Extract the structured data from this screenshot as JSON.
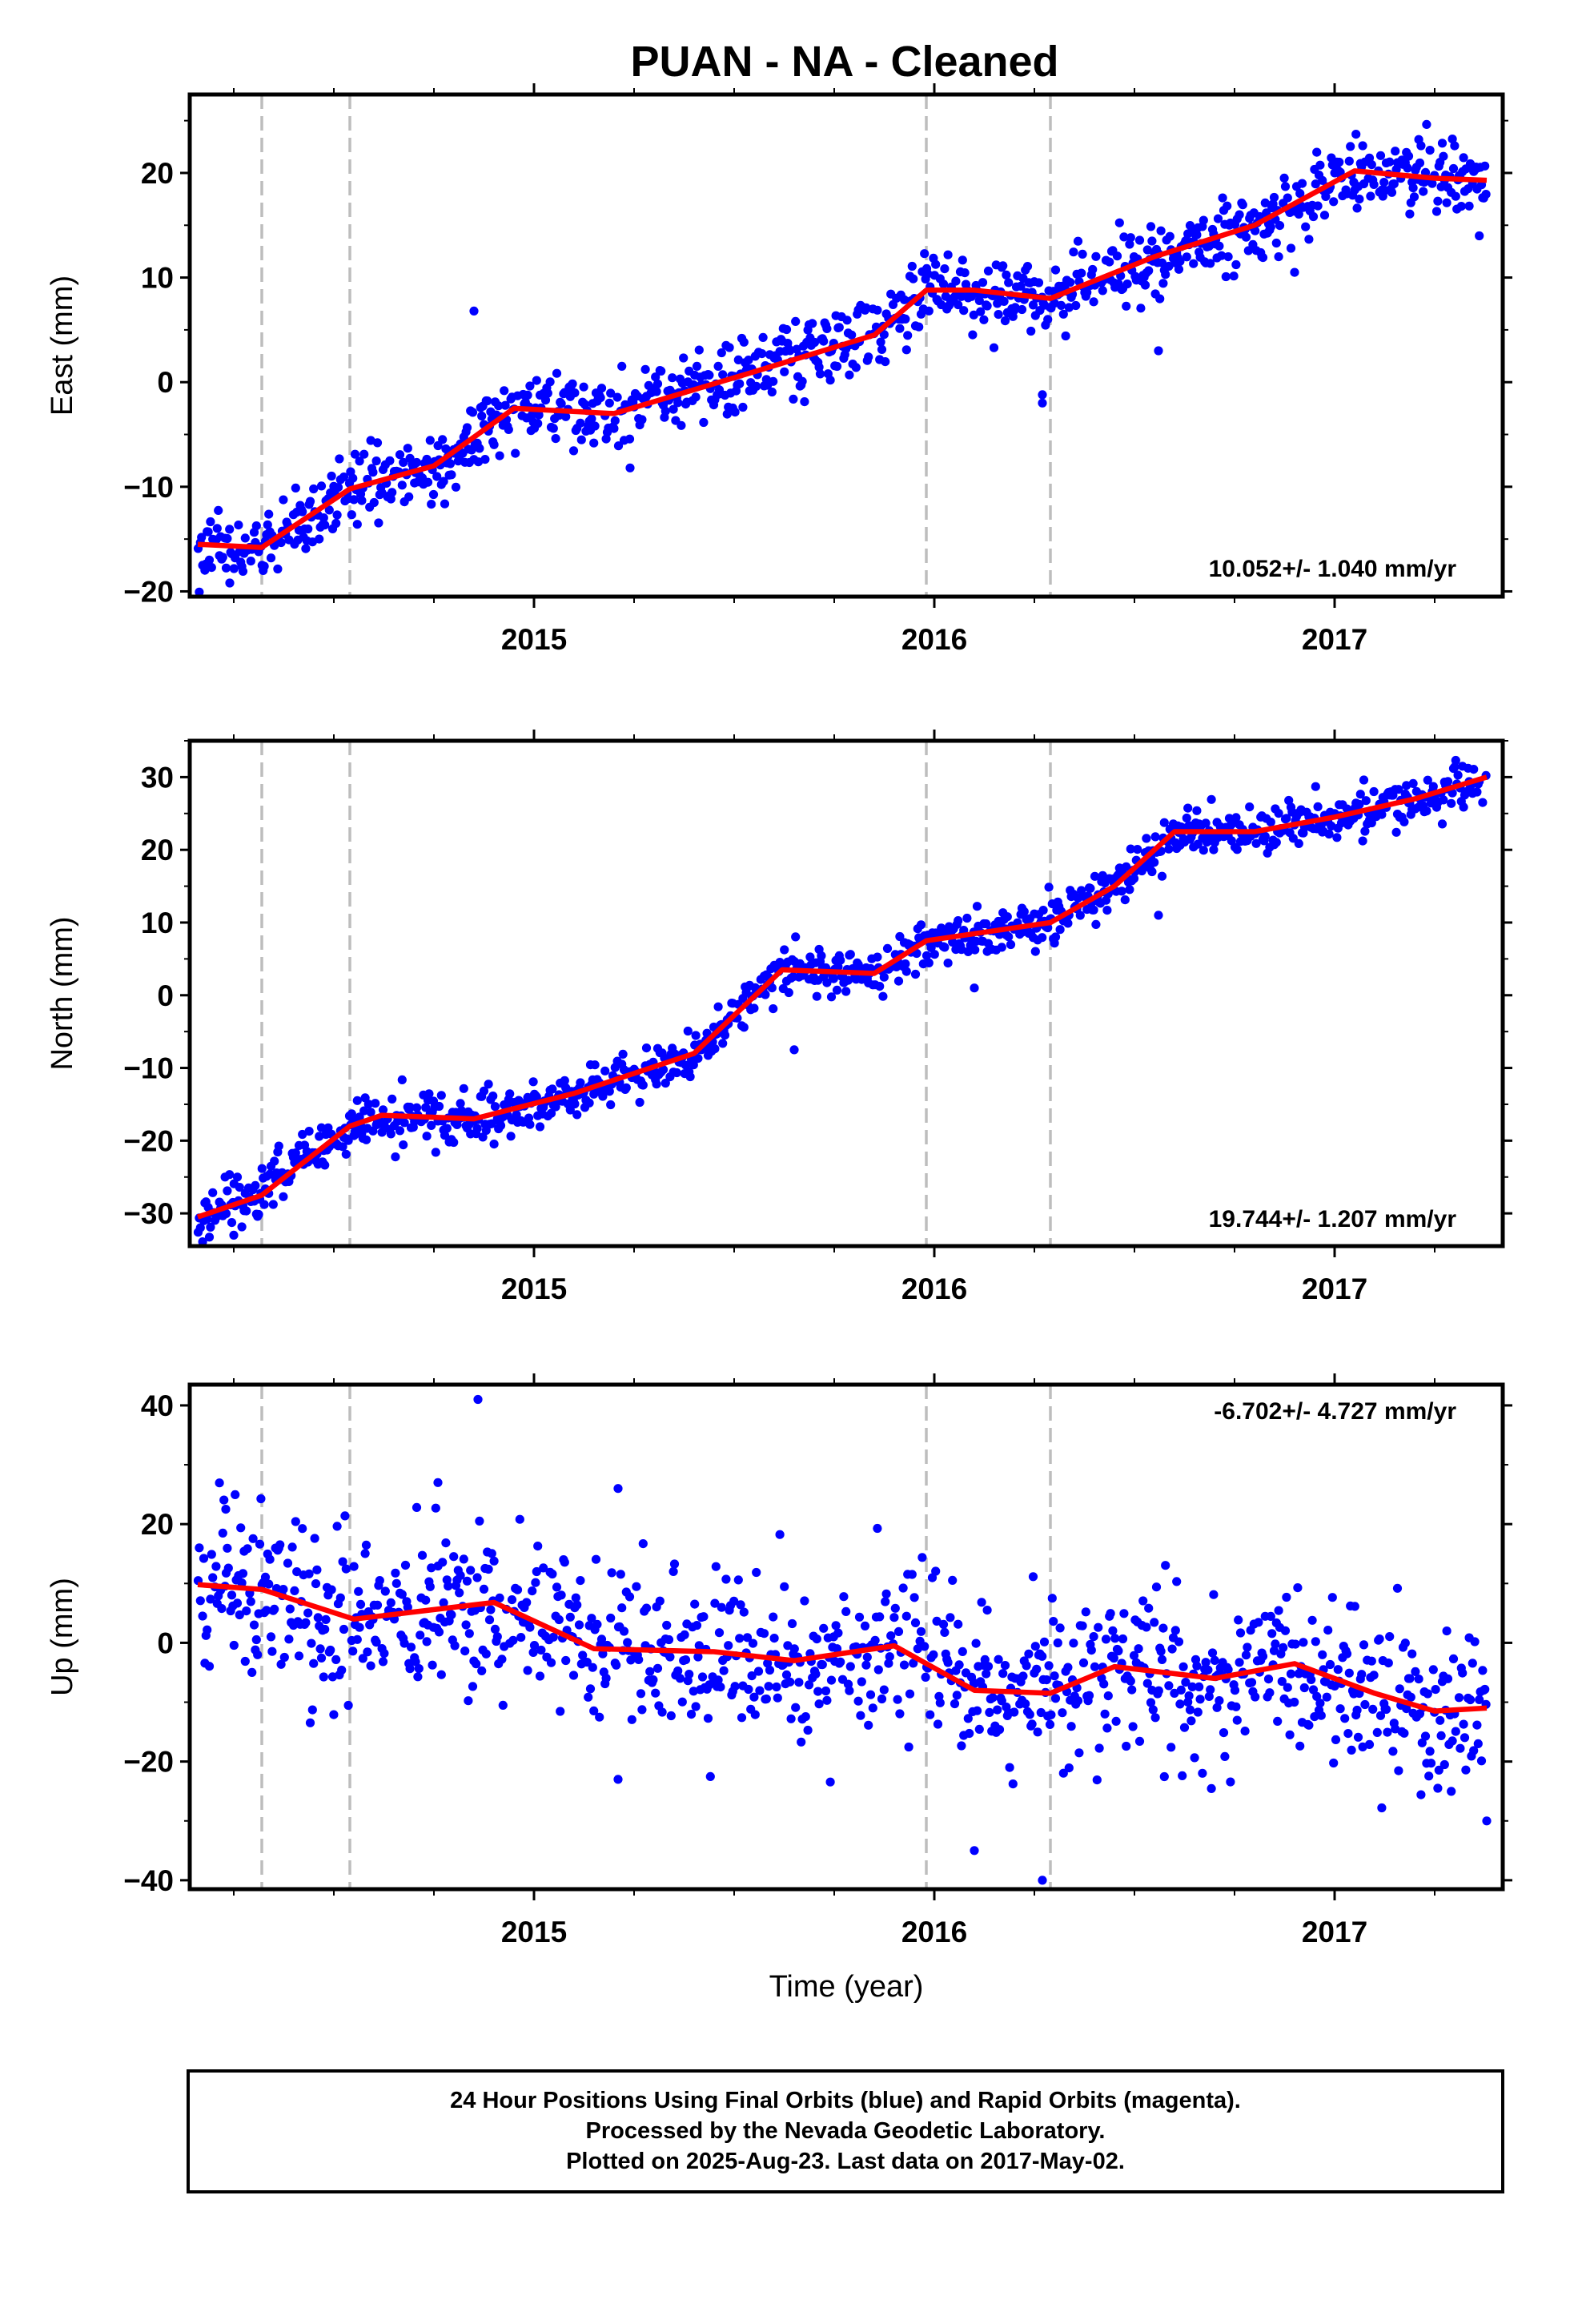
{
  "title": "PUAN  - NA - Cleaned",
  "footer": {
    "line1": "24 Hour Positions Using Final Orbits (blue) and Rapid Orbits (magenta).",
    "line2": "Processed by the Nevada Geodetic Laboratory.",
    "line3": "Plotted on 2025-Aug-23. Last data on 2017-May-02."
  },
  "colors": {
    "points": "#0000ff",
    "model": "#ff0000",
    "breaks": "#bdbdbd",
    "frame": "#000000"
  },
  "chart_data": [
    {
      "type": "scatter",
      "ylabel": "East (mm)",
      "xlim": [
        2014.14,
        2017.42
      ],
      "ylim": [
        -20.5,
        27.5
      ],
      "yticks": [
        -20,
        -10,
        0,
        10,
        20
      ],
      "xticks": [
        2015,
        2016,
        2017
      ],
      "rate_text": "10.052+/- 1.040 mm/yr",
      "breaks": [
        2014.32,
        2014.54,
        2015.98,
        2016.29
      ],
      "trend": {
        "x": [
          2014.16,
          2014.32,
          2014.54,
          2014.75,
          2014.95,
          2015.2,
          2015.55,
          2015.85,
          2015.98,
          2016.1,
          2016.29,
          2016.55,
          2016.8,
          2017.05,
          2017.25,
          2017.38
        ],
        "y": [
          -15.5,
          -15.8,
          -10.2,
          -8.0,
          -2.5,
          -3.0,
          1.0,
          4.5,
          8.8,
          8.8,
          8.0,
          12.0,
          15.0,
          20.2,
          19.5,
          19.3
        ]
      },
      "noise": 1.8,
      "outliers": [
        {
          "x": 2014.85,
          "y": 6.8
        },
        {
          "x": 2016.27,
          "y": -1.2
        },
        {
          "x": 2016.27,
          "y": -2.0
        },
        {
          "x": 2016.9,
          "y": 10.5
        },
        {
          "x": 2016.56,
          "y": 3.0
        },
        {
          "x": 2015.24,
          "y": -8.2
        },
        {
          "x": 2014.24,
          "y": -19.2
        }
      ]
    },
    {
      "type": "scatter",
      "ylabel": "North (mm)",
      "xlim": [
        2014.14,
        2017.42
      ],
      "ylim": [
        -34.5,
        35.0
      ],
      "yticks": [
        -30,
        -20,
        -10,
        0,
        10,
        20,
        30
      ],
      "xticks": [
        2015,
        2016,
        2017
      ],
      "rate_text": "19.744+/- 1.207 mm/yr",
      "breaks": [
        2014.32,
        2014.54,
        2015.98,
        2016.29
      ],
      "trend": {
        "x": [
          2014.16,
          2014.32,
          2014.54,
          2014.62,
          2014.85,
          2015.1,
          2015.4,
          2015.62,
          2015.85,
          2015.98,
          2016.29,
          2016.45,
          2016.6,
          2016.8,
          2017.0,
          2017.2,
          2017.38
        ],
        "y": [
          -30.5,
          -27.5,
          -18.0,
          -16.5,
          -17.0,
          -13.5,
          -8.0,
          3.5,
          3.0,
          7.5,
          10.0,
          15.0,
          22.5,
          22.5,
          24.5,
          27.0,
          30.0
        ]
      },
      "noise": 1.6,
      "outliers": [
        {
          "x": 2016.56,
          "y": 11.0
        },
        {
          "x": 2016.1,
          "y": 1.0
        },
        {
          "x": 2015.65,
          "y": -7.5
        },
        {
          "x": 2014.25,
          "y": -33.0
        }
      ]
    },
    {
      "type": "scatter",
      "ylabel": "Up (mm)",
      "xlabel": "Time (year)",
      "xlim": [
        2014.14,
        2017.42
      ],
      "ylim": [
        -41.5,
        43.5
      ],
      "yticks": [
        -40,
        -20,
        0,
        20,
        40
      ],
      "xticks": [
        2015,
        2016,
        2017
      ],
      "rate_text": "-6.702+/- 4.727 mm/yr",
      "breaks": [
        2014.32,
        2014.54,
        2015.98,
        2016.29
      ],
      "trend": {
        "x": [
          2014.16,
          2014.32,
          2014.55,
          2014.9,
          2015.15,
          2015.45,
          2015.65,
          2015.9,
          2016.1,
          2016.29,
          2016.45,
          2016.7,
          2016.9,
          2017.1,
          2017.25,
          2017.38
        ],
        "y": [
          9.8,
          9.0,
          4.0,
          6.8,
          -1.0,
          -1.5,
          -3.0,
          -0.5,
          -8.0,
          -8.5,
          -4.0,
          -6.0,
          -3.5,
          -8.5,
          -11.5,
          -11.0
        ]
      },
      "noise": 7.0,
      "outliers": [
        {
          "x": 2014.86,
          "y": 41.0
        },
        {
          "x": 2014.76,
          "y": 27.0
        },
        {
          "x": 2015.21,
          "y": 26.0
        },
        {
          "x": 2016.27,
          "y": -40.0
        },
        {
          "x": 2016.1,
          "y": -35.0
        },
        {
          "x": 2017.38,
          "y": -30.0
        },
        {
          "x": 2015.21,
          "y": -23.0
        },
        {
          "x": 2014.23,
          "y": 22.5
        }
      ]
    }
  ]
}
